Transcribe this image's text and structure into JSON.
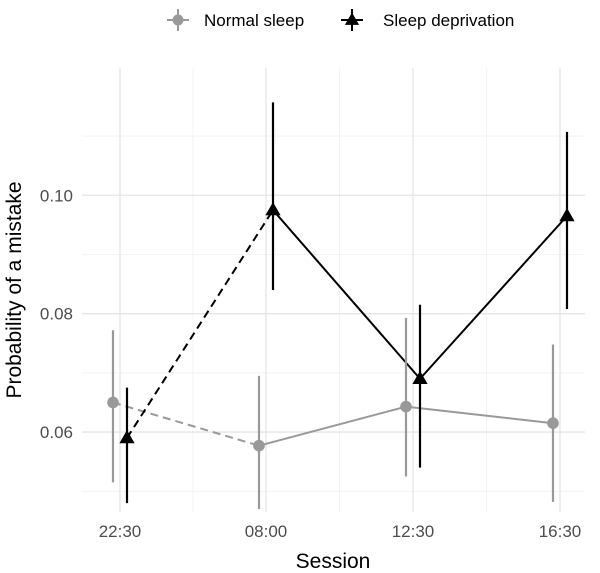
{
  "chart_data": {
    "type": "line",
    "title": "",
    "xlabel": "Session",
    "ylabel": "Probability of a mistake",
    "categories": [
      "22:30",
      "08:00",
      "12:30",
      "16:30"
    ],
    "ylim": [
      0.0465,
      0.1215
    ],
    "yticks": [
      0.06,
      0.08,
      0.1
    ],
    "ytick_labels": [
      "0.06",
      "0.08",
      "0.10"
    ],
    "grid": true,
    "legend_position": "top",
    "dashed_segment": "22:30 to 08:00",
    "series": [
      {
        "name": "Normal sleep",
        "color": "#999999",
        "marker": "circle",
        "values": [
          0.065,
          0.0577,
          0.0643,
          0.0615
        ],
        "lower": [
          0.0515,
          0.047,
          0.0525,
          0.0482
        ],
        "upper": [
          0.0772,
          0.0695,
          0.0793,
          0.0748
        ]
      },
      {
        "name": "Sleep deprivation",
        "color": "#000000",
        "marker": "triangle",
        "values": [
          0.059,
          0.0975,
          0.069,
          0.0965
        ],
        "lower": [
          0.048,
          0.084,
          0.054,
          0.0808
        ],
        "upper": [
          0.0675,
          0.1157,
          0.0815,
          0.1107
        ]
      }
    ]
  }
}
